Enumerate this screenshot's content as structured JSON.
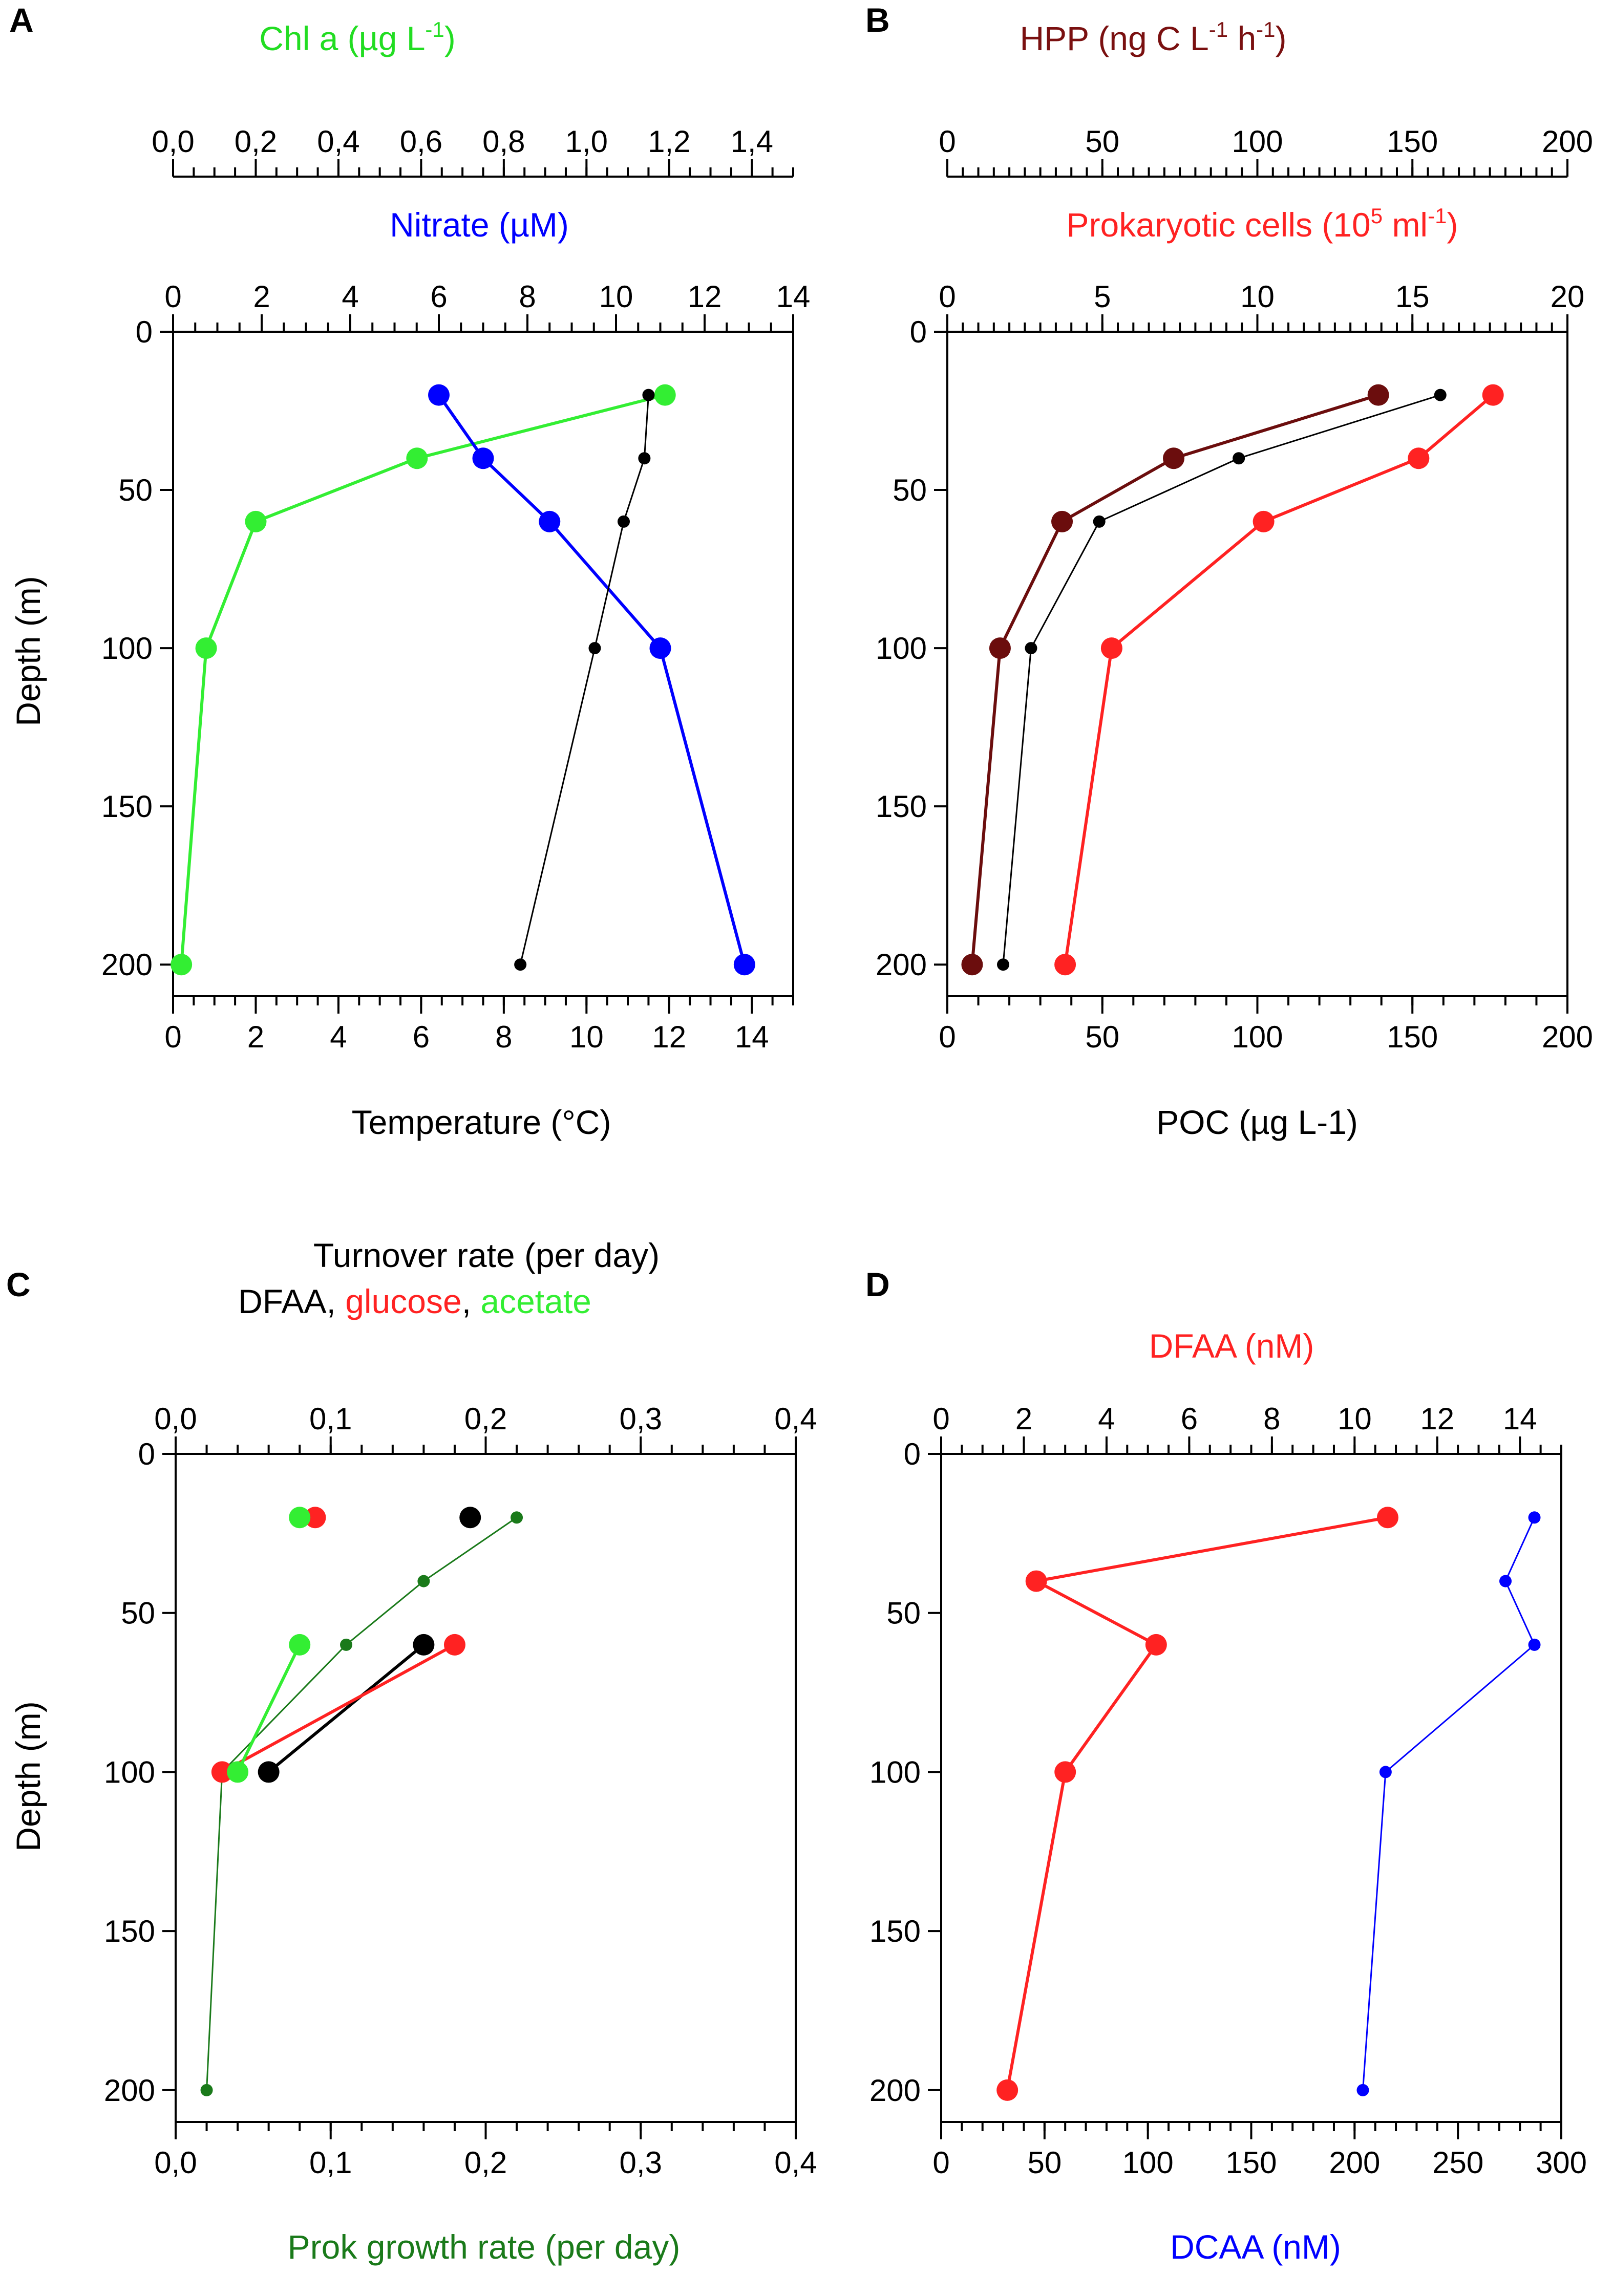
{
  "chart_data": [
    {
      "panel": "A",
      "type": "line",
      "ylabel": "Depth (m)",
      "ylim": [
        0,
        210
      ],
      "yticks": [
        0,
        50,
        100,
        150,
        200
      ],
      "ytick_labels": [
        "0",
        "50",
        "100",
        "150",
        "200"
      ],
      "axes": {
        "bottom": {
          "title": "Temperature (°C)",
          "range": [
            0,
            15
          ],
          "ticks": [
            0,
            2,
            4,
            6,
            8,
            10,
            12,
            14
          ],
          "labels": [
            "0",
            "2",
            "4",
            "6",
            "8",
            "10",
            "12",
            "14"
          ],
          "minor": 0.5,
          "color": "#000000"
        },
        "top": {
          "title": "Nitrate (µM)",
          "range": [
            0,
            14
          ],
          "ticks": [
            0,
            2,
            4,
            6,
            8,
            10,
            12,
            14
          ],
          "labels": [
            "0",
            "2",
            "4",
            "6",
            "8",
            "10",
            "12",
            "14"
          ],
          "minor": 0.5,
          "color": "#0000ff"
        },
        "top2": {
          "title_main": "Chl a (µg L",
          "title_sup": "-1",
          "title_end": ")",
          "range": [
            0,
            1.5
          ],
          "ticks": [
            0,
            0.2,
            0.4,
            0.6,
            0.8,
            1.0,
            1.2,
            1.4
          ],
          "labels": [
            "0,0",
            "0,2",
            "0,4",
            "0,6",
            "0,8",
            "1,0",
            "1,2",
            "1,4"
          ],
          "minor": 0.05,
          "color": "#22dd22"
        }
      },
      "series": [
        {
          "name": "Chl a",
          "axis": "top2",
          "color": "#33ee33",
          "marker": "large",
          "line_width": 6,
          "depths": [
            20,
            40,
            60,
            100,
            200
          ],
          "values": [
            1.19,
            0.59,
            0.2,
            0.08,
            0.02
          ]
        },
        {
          "name": "Nitrate",
          "axis": "top",
          "color": "#0000ff",
          "marker": "large",
          "line_width": 6,
          "depths": [
            20,
            40,
            60,
            100,
            200
          ],
          "values": [
            6.0,
            7.0,
            8.5,
            11.0,
            12.9
          ]
        },
        {
          "name": "Temperature",
          "axis": "bottom",
          "color": "#000000",
          "marker": "small",
          "line_width": 3,
          "depths": [
            20,
            40,
            60,
            100,
            200
          ],
          "values": [
            11.5,
            11.4,
            10.9,
            10.2,
            8.4
          ]
        }
      ]
    },
    {
      "panel": "B",
      "type": "line",
      "ylabel": "",
      "ylim": [
        0,
        210
      ],
      "yticks": [
        0,
        50,
        100,
        150,
        200
      ],
      "ytick_labels": [
        "0",
        "50",
        "100",
        "150",
        "200"
      ],
      "axes": {
        "bottom": {
          "title": "POC (µg L-1)",
          "range": [
            0,
            200
          ],
          "ticks": [
            0,
            50,
            100,
            150,
            200
          ],
          "labels": [
            "0",
            "50",
            "100",
            "150",
            "200"
          ],
          "minor": 10,
          "color": "#000000"
        },
        "top": {
          "title_main": "Prokaryotic cells (10",
          "title_sup": "5",
          "title_mid": " ml",
          "title_sup2": "-1",
          "title_end": ")",
          "range": [
            0,
            20
          ],
          "ticks": [
            0,
            5,
            10,
            15,
            20
          ],
          "labels": [
            "0",
            "5",
            "10",
            "15",
            "20"
          ],
          "minor": 0.5,
          "color": "#ff2222"
        },
        "top2": {
          "title_main": "HPP (ng C L",
          "title_sup": "-1",
          "title_mid": " h",
          "title_sup2": "-1",
          "title_end": ")",
          "range": [
            0,
            200
          ],
          "ticks": [
            0,
            50,
            100,
            150,
            200
          ],
          "labels": [
            "0",
            "50",
            "100",
            "150",
            "200"
          ],
          "minor": 5,
          "color": "#7a1010"
        }
      },
      "series": [
        {
          "name": "Prokaryotic cells",
          "axis": "top",
          "color": "#ff2222",
          "marker": "large",
          "line_width": 6,
          "depths": [
            20,
            40,
            60,
            100,
            200
          ],
          "values": [
            17.6,
            15.2,
            10.2,
            5.3,
            3.8
          ]
        },
        {
          "name": "HPP",
          "axis": "top2",
          "color": "#6b0d0d",
          "marker": "large",
          "line_width": 6,
          "depths": [
            20,
            40,
            60,
            100,
            200
          ],
          "values": [
            139,
            73,
            37,
            17,
            8
          ]
        },
        {
          "name": "POC",
          "axis": "bottom",
          "color": "#000000",
          "marker": "small",
          "line_width": 3,
          "depths": [
            20,
            40,
            60,
            100,
            200
          ],
          "values": [
            159,
            94,
            49,
            27,
            18
          ]
        }
      ]
    },
    {
      "panel": "C",
      "type": "scatter",
      "ylabel": "Depth (m)",
      "ylim": [
        0,
        210
      ],
      "yticks": [
        0,
        50,
        100,
        150,
        200
      ],
      "ytick_labels": [
        "0",
        "50",
        "100",
        "150",
        "200"
      ],
      "axes": {
        "bottom": {
          "title": "Prok growth rate (per day)",
          "range": [
            0,
            0.4
          ],
          "ticks": [
            0,
            0.1,
            0.2,
            0.3,
            0.4
          ],
          "labels": [
            "0,0",
            "0,1",
            "0,2",
            "0,3",
            "0,4"
          ],
          "minor": 0.02,
          "color": "#1a7a1a"
        },
        "top": {
          "title_lines": [
            "Turnover rate (per day)"
          ],
          "title_parts": [
            {
              "text": "DFAA",
              "color": "#000000"
            },
            {
              "text": ", ",
              "color": "#000000"
            },
            {
              "text": "glucose",
              "color": "#ff2222"
            },
            {
              "text": ", ",
              "color": "#000000"
            },
            {
              "text": "acetate",
              "color": "#33ee33"
            }
          ],
          "range": [
            0,
            0.4
          ],
          "ticks": [
            0,
            0.1,
            0.2,
            0.3,
            0.4
          ],
          "labels": [
            "0,0",
            "0,1",
            "0,2",
            "0,3",
            "0,4"
          ],
          "minor": 0.02,
          "color": "#000000"
        }
      },
      "series": [
        {
          "name": "Prok growth rate",
          "axis": "bottom",
          "color": "#1a7a1a",
          "marker": "small",
          "line_width": 3,
          "depths": [
            20,
            40,
            60,
            100,
            200
          ],
          "values": [
            0.22,
            0.16,
            0.11,
            0.03,
            0.02
          ]
        },
        {
          "name": "DFAA turnover",
          "axis": "top",
          "color": "#000000",
          "marker": "large",
          "line_width": 6,
          "depths": [
            20,
            60,
            100
          ],
          "values": [
            0.19,
            0.16,
            0.06
          ],
          "connect_from": 1
        },
        {
          "name": "Glucose turnover",
          "axis": "top",
          "color": "#ff2222",
          "marker": "large",
          "line_width": 6,
          "depths": [
            20,
            60,
            100
          ],
          "values": [
            0.09,
            0.18,
            0.03
          ],
          "connect_from": 1
        },
        {
          "name": "Acetate turnover",
          "axis": "top",
          "color": "#33ee33",
          "marker": "large",
          "line_width": 6,
          "depths": [
            20,
            60,
            100
          ],
          "values": [
            0.08,
            0.08,
            0.04
          ],
          "connect_from": 1
        }
      ]
    },
    {
      "panel": "D",
      "type": "line",
      "ylabel": "",
      "ylim": [
        0,
        210
      ],
      "yticks": [
        0,
        50,
        100,
        150,
        200
      ],
      "ytick_labels": [
        "0",
        "50",
        "100",
        "150",
        "200"
      ],
      "axes": {
        "bottom": {
          "title": "DCAA (nM)",
          "range": [
            0,
            300
          ],
          "ticks": [
            0,
            50,
            100,
            150,
            200,
            250,
            300
          ],
          "labels": [
            "0",
            "50",
            "100",
            "150",
            "200",
            "250",
            "300"
          ],
          "minor": 10,
          "color": "#0000ff"
        },
        "top": {
          "title": "DFAA (nM)",
          "range": [
            0,
            15
          ],
          "ticks": [
            0,
            2,
            4,
            6,
            8,
            10,
            12,
            14
          ],
          "labels": [
            "0",
            "2",
            "4",
            "6",
            "8",
            "10",
            "12",
            "14"
          ],
          "minor": 0.5,
          "color": "#ff2222"
        }
      },
      "series": [
        {
          "name": "DFAA",
          "axis": "top",
          "color": "#ff2222",
          "marker": "large",
          "line_width": 6,
          "depths": [
            20,
            40,
            60,
            100,
            200
          ],
          "values": [
            10.8,
            2.3,
            5.2,
            3.0,
            1.6
          ]
        },
        {
          "name": "DCAA",
          "axis": "bottom",
          "color": "#0000ff",
          "marker": "small",
          "line_width": 3,
          "depths": [
            20,
            40,
            60,
            100,
            200
          ],
          "values": [
            287,
            273,
            287,
            215,
            204
          ]
        }
      ]
    }
  ]
}
